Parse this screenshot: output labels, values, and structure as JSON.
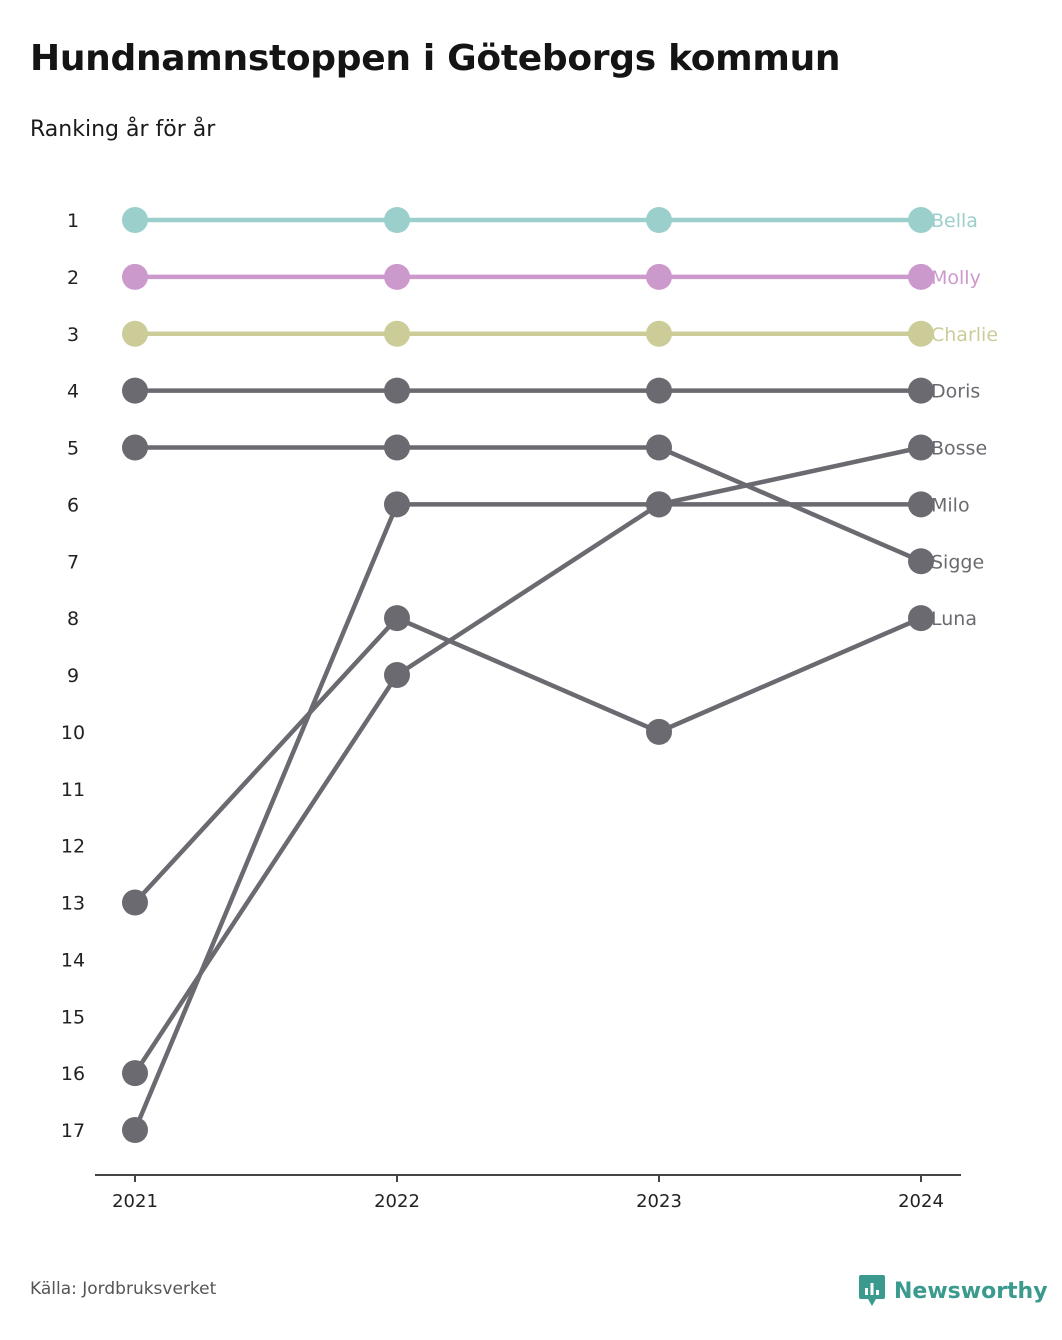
{
  "title": "Hundnamnstoppen i Göteborgs kommun",
  "subtitle": "Ranking år för år",
  "source": "Källa: Jordbruksverket",
  "brand": "Newsworthy",
  "colors": {
    "Bella": "#9bcfcc",
    "Molly": "#cc99cc",
    "Charlie": "#cccc99",
    "default": "#6b6a70",
    "axis": "#444444",
    "brand": "#3a9a8e"
  },
  "chart_data": {
    "type": "line",
    "x": [
      "2021",
      "2022",
      "2023",
      "2024"
    ],
    "y_ticks": [
      1,
      2,
      3,
      4,
      5,
      6,
      7,
      8,
      9,
      10,
      11,
      12,
      13,
      14,
      15,
      16,
      17
    ],
    "ylim": [
      1,
      17
    ],
    "y_reversed": true,
    "grid": false,
    "series": [
      {
        "name": "Bella",
        "values": [
          1,
          1,
          1,
          1
        ]
      },
      {
        "name": "Molly",
        "values": [
          2,
          2,
          2,
          2
        ]
      },
      {
        "name": "Charlie",
        "values": [
          3,
          3,
          3,
          3
        ]
      },
      {
        "name": "Doris",
        "values": [
          4,
          4,
          4,
          4
        ]
      },
      {
        "name": "Bosse",
        "values": [
          16,
          9,
          6,
          5
        ]
      },
      {
        "name": "Milo",
        "values": [
          17,
          6,
          6,
          6
        ]
      },
      {
        "name": "Sigge",
        "values": [
          5,
          5,
          5,
          7
        ]
      },
      {
        "name": "Luna",
        "values": [
          13,
          8,
          10,
          8
        ]
      }
    ]
  }
}
